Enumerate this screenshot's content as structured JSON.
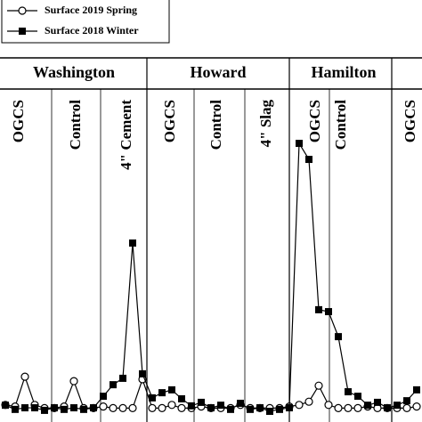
{
  "chart_data": {
    "type": "line",
    "group_labels": [
      "Washington",
      "Howard",
      "Hamilton"
    ],
    "section_labels": [
      "OGCS",
      "Control",
      "4\" Cement",
      "OGCS",
      "Control",
      "4\" Slag",
      "OGCS",
      "Control",
      "OGCS"
    ],
    "categories": [
      null,
      null,
      null,
      null,
      null,
      null,
      null,
      null,
      null,
      null,
      null,
      null,
      null,
      null,
      null,
      null,
      null,
      null,
      null,
      null,
      null,
      null,
      null,
      null,
      null,
      null,
      null,
      null,
      null,
      null,
      null,
      null,
      null,
      null,
      null,
      null,
      null,
      null,
      null,
      null,
      null,
      null,
      null
    ],
    "ylim": [
      0,
      100
    ],
    "series": [
      {
        "name": "Surface 2019 Spring",
        "color": "#000000",
        "marker": "open-circle",
        "values": [
          2,
          1.5,
          10.8,
          2,
          1,
          1,
          1.5,
          9.4,
          1,
          1,
          1.5,
          1,
          1,
          1,
          10,
          1,
          1,
          2,
          1,
          1,
          1.5,
          1,
          1,
          1,
          2,
          1,
          1,
          1,
          1,
          1.5,
          2,
          3,
          8,
          2,
          1,
          1,
          1,
          1.5,
          1,
          1,
          1,
          1,
          1.5
        ]
      },
      {
        "name": "Surface 2018 Winter",
        "color": "#000000",
        "marker": "filled-square",
        "values": [
          1.9,
          0.6,
          1.1,
          1.1,
          0.3,
          1.1,
          0.6,
          1.1,
          0.6,
          1.1,
          4.7,
          8.3,
          10.3,
          52.5,
          11.7,
          4.2,
          5.8,
          6.7,
          3.9,
          1.7,
          2.8,
          1.1,
          1.9,
          0.6,
          2.5,
          0.6,
          1.1,
          0,
          0.6,
          1.1,
          83.6,
          78.6,
          31.7,
          31.1,
          23.3,
          6.1,
          4.7,
          1.9,
          2.8,
          1.1,
          1.9,
          3.3,
          6.7
        ]
      }
    ]
  }
}
